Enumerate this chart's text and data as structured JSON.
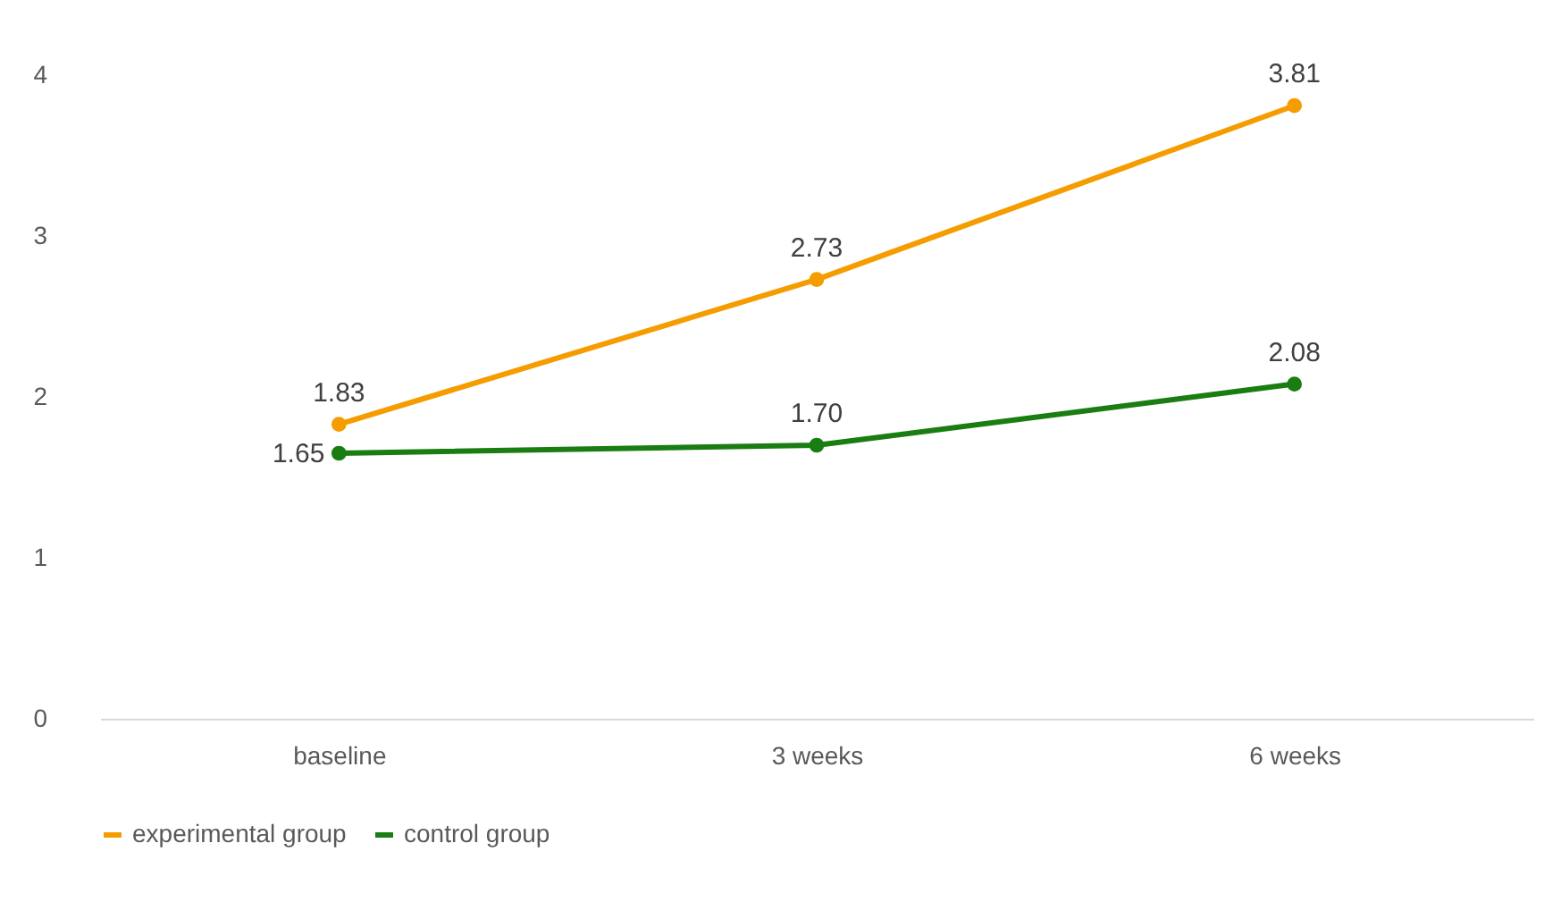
{
  "chart_data": {
    "type": "line",
    "categories": [
      "baseline",
      "3 weeks",
      "6 weeks"
    ],
    "series": [
      {
        "name": "experimental group",
        "color": "#f59c00",
        "values": [
          1.83,
          2.73,
          3.81
        ],
        "value_labels": [
          "1.83",
          "2.73",
          "3.81"
        ]
      },
      {
        "name": "control group",
        "color": "#1a7d12",
        "values": [
          1.65,
          1.7,
          2.08
        ],
        "value_labels": [
          "1.65",
          "1.70",
          "2.08"
        ]
      }
    ],
    "ylim": [
      0,
      4
    ],
    "yticks": [
      0,
      1,
      2,
      3,
      4
    ],
    "grid": false,
    "legend": "bottom",
    "marker": "circle",
    "line_style": "solid"
  }
}
